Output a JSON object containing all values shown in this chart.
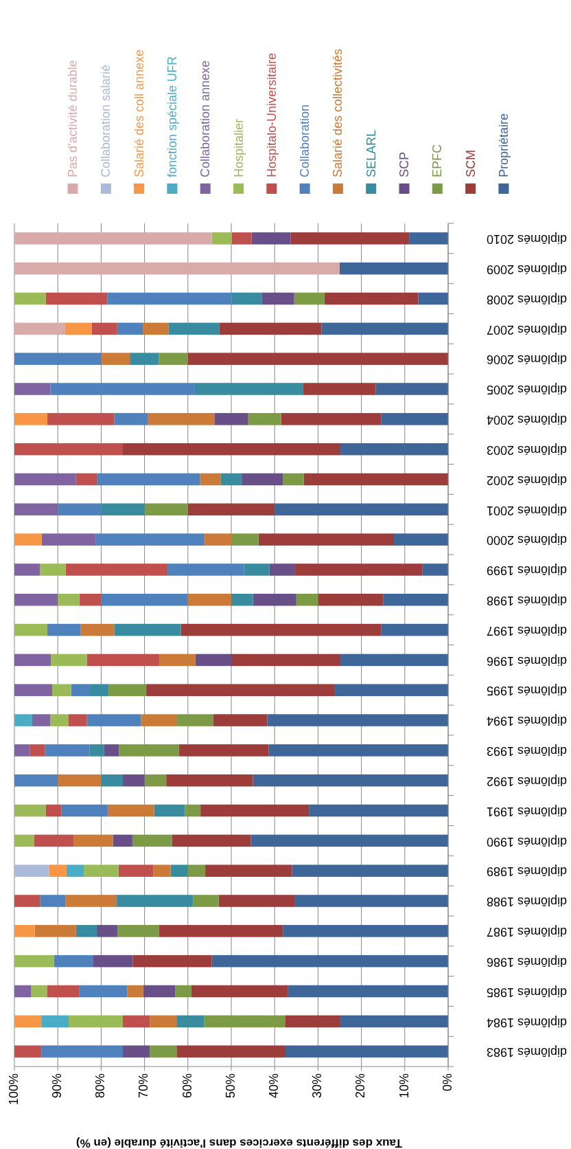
{
  "chart_data": {
    "type": "bar",
    "stacked": true,
    "orientation": "horizontal",
    "xlabel": "Taux des différents exercices dans l'activité durable (en %)",
    "legend": "top",
    "grid": "x",
    "xlim": [
      100,
      0
    ],
    "xticks": [
      {
        "value": 100,
        "label": "100%"
      },
      {
        "value": 90,
        "label": "90%"
      },
      {
        "value": 80,
        "label": "80%"
      },
      {
        "value": 70,
        "label": "70%"
      },
      {
        "value": 60,
        "label": "60%"
      },
      {
        "value": 50,
        "label": "50%"
      },
      {
        "value": 40,
        "label": "40%"
      },
      {
        "value": 30,
        "label": "30%"
      },
      {
        "value": 20,
        "label": "20%"
      },
      {
        "value": 10,
        "label": "10%"
      },
      {
        "value": 0,
        "label": "0%"
      }
    ],
    "categories": [
      "diplômés 2010",
      "diplômés 2009",
      "diplômés 2008",
      "diplômés 2007",
      "diplômés 2006",
      "diplômés 2005",
      "diplômés 2004",
      "diplômés 2003",
      "diplômés 2002",
      "diplômés 2001",
      "diplômés 2000",
      "diplômés 1999",
      "diplômés 1998",
      "diplômés 1997",
      "diplômés 1996",
      "diplômés 1995",
      "diplômés 1994",
      "diplômés 1993",
      "diplômés 1992",
      "diplômés 1991",
      "diplômés 1990",
      "diplômés 1989",
      "diplômés 1988",
      "diplômés 1987",
      "diplômés 1986",
      "diplômés 1985",
      "diplômés 1984",
      "diplômés 1983"
    ],
    "series": [
      {
        "name": "Propriétaire",
        "color": "#3e6699",
        "values": [
          9,
          25,
          6.9,
          29.2,
          null,
          16.7,
          15.4,
          25,
          null,
          40,
          12.5,
          5.9,
          15,
          15.4,
          25,
          26.1,
          41.7,
          41.4,
          45,
          32.1,
          45.5,
          36,
          35.3,
          38.1,
          54.5,
          37,
          25,
          37.5
        ]
      },
      {
        "name": "SCM",
        "color": "#9c3d3b",
        "values": [
          27.3,
          null,
          21.6,
          23.6,
          60,
          16.7,
          23.1,
          50,
          33.3,
          20,
          31.2,
          29.4,
          15,
          46.2,
          25,
          43.5,
          12.5,
          20.7,
          20,
          25,
          18.2,
          20,
          17.6,
          28.6,
          18.2,
          22.2,
          12.5,
          25
        ]
      },
      {
        "name": "EPFC",
        "color": "#7d9a46",
        "values": [
          null,
          null,
          7,
          null,
          6.7,
          null,
          7.7,
          null,
          4.8,
          10,
          6.3,
          null,
          5,
          null,
          null,
          8.7,
          8.3,
          13.8,
          5,
          3.6,
          9.1,
          4,
          5.9,
          9.5,
          null,
          3.7,
          18.8,
          6.3
        ]
      },
      {
        "name": "SCP",
        "color": "#684f88",
        "values": [
          9,
          null,
          7.4,
          null,
          null,
          null,
          7.7,
          null,
          9.5,
          null,
          null,
          5.9,
          10,
          null,
          8.3,
          null,
          null,
          3.4,
          5,
          null,
          4.5,
          null,
          null,
          4.8,
          9.1,
          7.4,
          null,
          6.2
        ]
      },
      {
        "name": "SELARL",
        "color": "#398ba0",
        "values": [
          null,
          null,
          7,
          11.7,
          6.7,
          25,
          null,
          null,
          4.8,
          10,
          null,
          5.9,
          5,
          15.4,
          null,
          4.3,
          null,
          3.4,
          5,
          7.1,
          null,
          4,
          17.6,
          4.8,
          null,
          null,
          6.2,
          null
        ]
      },
      {
        "name": "Salarié des collectivités",
        "color": "#cb7a37",
        "values": [
          null,
          null,
          null,
          5.9,
          6.6,
          null,
          15.4,
          null,
          4.8,
          null,
          6.2,
          null,
          10,
          7.7,
          8.3,
          null,
          8.3,
          null,
          10,
          10.7,
          9.1,
          4,
          11.8,
          9.5,
          null,
          3.7,
          6.3,
          null
        ]
      },
      {
        "name": "Collaboration",
        "color": "#4f81bd",
        "values": [
          null,
          null,
          28.7,
          5.9,
          20,
          33.3,
          7.7,
          null,
          23.8,
          10,
          25,
          17.6,
          20,
          7.7,
          null,
          4.3,
          12.5,
          10.3,
          10,
          10.7,
          null,
          null,
          5.9,
          null,
          9.1,
          11.1,
          null,
          18.8
        ]
      },
      {
        "name": "Hospitalo-Universitaire",
        "color": "#c0504d",
        "values": [
          4.6,
          null,
          14.2,
          5.9,
          null,
          null,
          15.4,
          25,
          4.8,
          null,
          null,
          23.5,
          5,
          null,
          16.7,
          null,
          4.2,
          3.4,
          null,
          3.6,
          9.1,
          8,
          5.9,
          null,
          null,
          7.4,
          6.2,
          6.2
        ]
      },
      {
        "name": "Hospitalier",
        "color": "#9bbb59",
        "values": [
          4.6,
          null,
          7.2,
          null,
          null,
          null,
          null,
          null,
          null,
          null,
          null,
          5.9,
          5,
          7.6,
          8.3,
          4.4,
          4.2,
          null,
          null,
          7.2,
          4.5,
          8,
          null,
          null,
          9.1,
          3.7,
          12.5,
          null
        ]
      },
      {
        "name": "Collaboration annexe",
        "color": "#8064a2",
        "values": [
          null,
          null,
          null,
          null,
          null,
          8.3,
          null,
          null,
          14.2,
          10,
          12.5,
          5.9,
          10,
          null,
          8.4,
          8.7,
          4.2,
          3.6,
          null,
          null,
          null,
          null,
          null,
          null,
          null,
          3.8,
          null,
          null
        ]
      },
      {
        "name": "fonction spéciale UFR",
        "color": "#4bacc6",
        "values": [
          null,
          null,
          null,
          null,
          null,
          null,
          null,
          null,
          null,
          null,
          null,
          null,
          null,
          null,
          null,
          null,
          4.1,
          null,
          null,
          null,
          null,
          4,
          null,
          null,
          null,
          null,
          6.3,
          null
        ]
      },
      {
        "name": "Salarié des coll annexe",
        "color": "#f79646",
        "values": [
          null,
          null,
          null,
          6.1,
          null,
          null,
          7.6,
          null,
          null,
          null,
          6.3,
          null,
          null,
          null,
          null,
          null,
          null,
          null,
          null,
          null,
          null,
          4,
          null,
          4.7,
          null,
          null,
          6.2,
          null
        ]
      },
      {
        "name": "Collaboration salarié",
        "color": "#aabad7",
        "values": [
          null,
          null,
          null,
          null,
          null,
          null,
          null,
          null,
          null,
          null,
          null,
          null,
          null,
          null,
          null,
          null,
          null,
          null,
          null,
          null,
          null,
          8,
          null,
          null,
          null,
          null,
          null,
          null
        ]
      },
      {
        "name": "Pas d'activité durable",
        "color": "#d9aaaa",
        "values": [
          45.5,
          75,
          null,
          11.7,
          null,
          null,
          null,
          null,
          null,
          null,
          null,
          null,
          null,
          null,
          null,
          null,
          null,
          null,
          null,
          null,
          null,
          null,
          null,
          null,
          null,
          null,
          null,
          null
        ]
      }
    ]
  }
}
